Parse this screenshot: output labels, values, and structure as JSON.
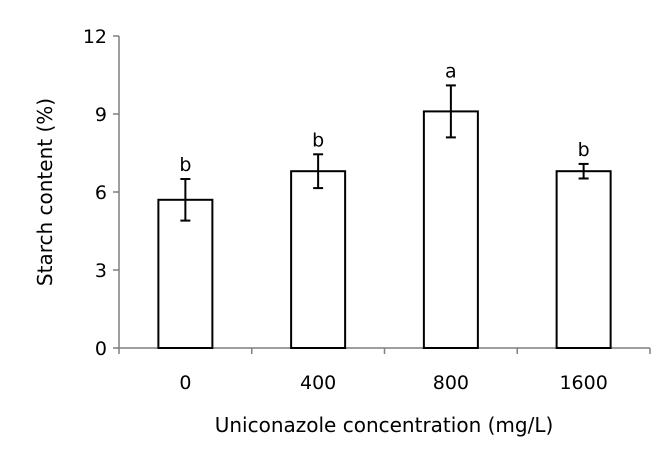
{
  "chart_data": {
    "type": "bar",
    "title": "",
    "xlabel": "Uniconazole concentration (mg/L)",
    "ylabel": "Starch content (%)",
    "categories": [
      "0",
      "400",
      "800",
      "1600"
    ],
    "values": [
      5.7,
      6.8,
      9.1,
      6.8
    ],
    "errors": [
      0.8,
      0.65,
      1.0,
      0.28
    ],
    "significance_letters": [
      "b",
      "b",
      "a",
      "b"
    ],
    "ylim": [
      0,
      12
    ],
    "yticks": [
      "0",
      "3",
      "6",
      "9",
      "12"
    ],
    "grid": false,
    "legend": "none",
    "bar_fill": "#ffffff",
    "bar_stroke": "#000000",
    "axis_color": "#7f7f7f"
  }
}
